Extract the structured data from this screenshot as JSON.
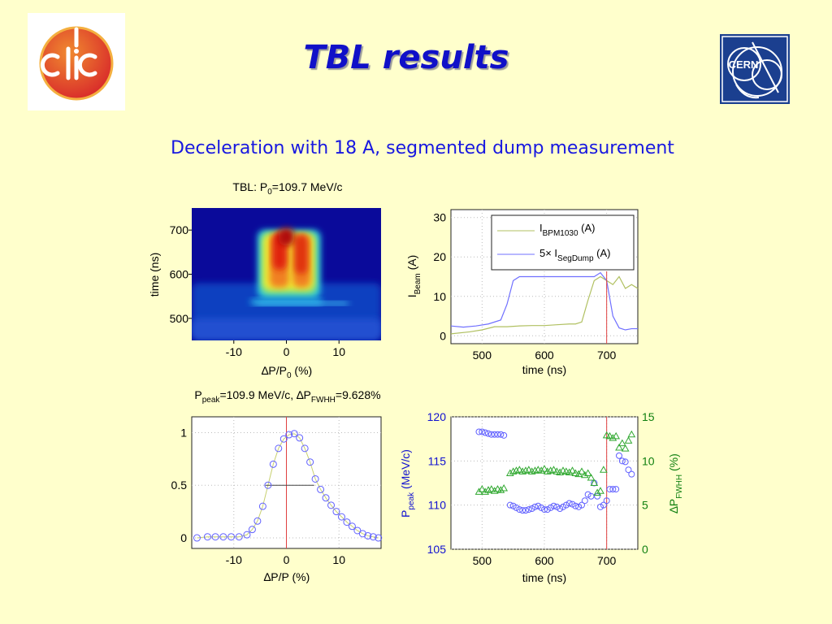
{
  "slide": {
    "title": "TBL results",
    "subtitle": "Deceleration with 18 A, segmented dump measurement",
    "logos": {
      "left": "CLIC",
      "right": "CERN"
    }
  },
  "colors": {
    "background": "#ffffcc",
    "title": "#1010c8",
    "subtitle": "#1818e0",
    "series_blue": "#6060ff",
    "series_green": "#30a830",
    "marker_line": "#e04040",
    "ppeak_axis": "#1010d0",
    "dp_axis": "#108010"
  },
  "chart_data": [
    {
      "type": "heatmap",
      "title_parts": [
        "TBL: P",
        "0",
        "=109.7 MeV/c"
      ],
      "xlabel_parts": [
        "∆P/P",
        "0",
        " (%)"
      ],
      "ylabel": "time (ns)",
      "xlim": [
        -18,
        18
      ],
      "ylim": [
        450,
        750
      ],
      "xticks": [
        -10,
        0,
        10
      ],
      "yticks": [
        500,
        600,
        700
      ],
      "colormap": "jet",
      "note": "Beam signal vs relative momentum; high intensity around ∆P/P0 between -5 and +5 % for time 520-700 ns"
    },
    {
      "type": "line",
      "xlabel": "time (ns)",
      "ylabel": "I",
      "ylabel_sub": "Beam",
      "ylabel_suffix": " (A)",
      "xlim": [
        450,
        750
      ],
      "ylim": [
        -2,
        32
      ],
      "xticks": [
        500,
        600,
        700
      ],
      "yticks": [
        0,
        10,
        20,
        30
      ],
      "grid": true,
      "legend_position": "top-right",
      "vline_x": 700,
      "series": [
        {
          "legend_parts": [
            "I",
            "BPM1030",
            " (A)"
          ],
          "color": "green",
          "x": [
            450,
            480,
            500,
            520,
            540,
            560,
            580,
            600,
            620,
            640,
            650,
            660,
            670,
            680,
            690,
            700,
            710,
            720,
            730,
            740,
            750
          ],
          "y": [
            0.5,
            1,
            1.5,
            2.3,
            2.3,
            2.5,
            2.6,
            2.6,
            2.8,
            3,
            3,
            3.5,
            9,
            14,
            15,
            14,
            13,
            15,
            12,
            13,
            12
          ]
        },
        {
          "legend_parts": [
            "5× I",
            "SegDump",
            " (A)"
          ],
          "color": "blue",
          "x": [
            450,
            470,
            490,
            510,
            530,
            540,
            550,
            560,
            580,
            600,
            620,
            640,
            660,
            680,
            690,
            700,
            710,
            720,
            730,
            740,
            750
          ],
          "y": [
            2.5,
            2.2,
            2.5,
            3,
            4,
            8,
            14,
            15,
            15,
            15,
            15,
            15,
            15,
            15,
            16,
            14,
            5,
            2,
            1.5,
            1.8,
            1.8
          ]
        }
      ]
    },
    {
      "type": "scatter",
      "title_parts": [
        "P",
        "peak",
        "=109.9 MeV/c, ∆P",
        "FWHH",
        "=9.628%"
      ],
      "xlabel": "∆P/P (%)",
      "xlim": [
        -18,
        18
      ],
      "ylim": [
        -0.1,
        1.15
      ],
      "xticks": [
        -10,
        0,
        10
      ],
      "yticks": [
        0,
        0.5,
        1
      ],
      "ytick_labels": [
        "0",
        "0.5",
        "1"
      ],
      "grid": true,
      "vline_x": 0,
      "fwhm_line": {
        "x1": -4,
        "x2": 5.3,
        "y": 0.5
      },
      "series": [
        {
          "marker": "circle",
          "color": "blue",
          "x": [
            -17,
            -15,
            -13.5,
            -12,
            -10.5,
            -9,
            -7.5,
            -6.5,
            -5.5,
            -4.5,
            -3.5,
            -2.5,
            -1.5,
            -0.5,
            0.5,
            1.5,
            2.5,
            3.5,
            4.5,
            5.5,
            6.5,
            7.5,
            8.5,
            9.5,
            10.5,
            11.5,
            12.5,
            13.5,
            14.5,
            15.5,
            16.5,
            17.5
          ],
          "y": [
            0.0,
            0.01,
            0.01,
            0.01,
            0.01,
            0.01,
            0.03,
            0.08,
            0.16,
            0.3,
            0.5,
            0.7,
            0.85,
            0.94,
            0.98,
            0.99,
            0.95,
            0.85,
            0.72,
            0.56,
            0.46,
            0.38,
            0.31,
            0.25,
            0.2,
            0.15,
            0.11,
            0.07,
            0.04,
            0.02,
            0.01,
            0.0
          ]
        }
      ]
    },
    {
      "type": "scatter",
      "xlabel": "time (ns)",
      "ylabel_left_parts": [
        "P",
        "peak",
        " (MeV/c)"
      ],
      "ylabel_right_parts": [
        "∆P",
        "FWHH",
        " (%)"
      ],
      "xlim": [
        450,
        750
      ],
      "ylim_left": [
        105,
        120
      ],
      "ylim_right": [
        0,
        15
      ],
      "xticks": [
        500,
        600,
        700
      ],
      "yticks_left": [
        105,
        110,
        115,
        120
      ],
      "yticks_right": [
        0,
        5,
        10,
        15
      ],
      "grid": true,
      "vline_x": 700,
      "series": [
        {
          "name": "P_peak",
          "axis": "left",
          "marker": "circle",
          "color": "blue",
          "x": [
            495,
            500,
            505,
            510,
            515,
            520,
            525,
            530,
            535,
            545,
            550,
            555,
            560,
            565,
            570,
            575,
            580,
            585,
            590,
            595,
            600,
            605,
            610,
            615,
            620,
            625,
            630,
            635,
            640,
            645,
            650,
            655,
            660,
            665,
            670,
            675,
            680,
            685,
            690,
            695,
            700,
            705,
            710,
            715,
            720,
            725,
            730,
            735,
            740
          ],
          "y": [
            118.3,
            118.3,
            118.2,
            118.1,
            118.0,
            118.0,
            118.0,
            118.0,
            117.9,
            110.0,
            109.9,
            109.7,
            109.5,
            109.4,
            109.4,
            109.5,
            109.6,
            109.8,
            109.9,
            109.7,
            109.5,
            109.5,
            109.7,
            109.9,
            109.8,
            109.6,
            109.8,
            110.0,
            110.2,
            110.1,
            109.9,
            109.8,
            110.0,
            110.5,
            111.2,
            111.0,
            112.5,
            111.0,
            109.8,
            110.0,
            110.5,
            111.8,
            111.8,
            111.8,
            115.6,
            115.0,
            114.9,
            114.0,
            113.5
          ]
        },
        {
          "name": "∆P_FWHH",
          "axis": "right",
          "marker": "triangle",
          "color": "green",
          "x": [
            495,
            500,
            505,
            510,
            515,
            520,
            525,
            530,
            535,
            545,
            550,
            555,
            560,
            565,
            570,
            575,
            580,
            585,
            590,
            595,
            600,
            605,
            610,
            615,
            620,
            625,
            630,
            635,
            640,
            645,
            650,
            655,
            660,
            665,
            670,
            675,
            680,
            685,
            690,
            695,
            700,
            705,
            710,
            715,
            720,
            725,
            730,
            735,
            740
          ],
          "y": [
            6.5,
            6.8,
            6.5,
            6.7,
            6.8,
            6.6,
            6.8,
            6.7,
            6.9,
            8.6,
            8.8,
            8.9,
            9.0,
            8.8,
            8.9,
            9.0,
            8.8,
            8.9,
            9.0,
            8.9,
            9.1,
            8.8,
            8.9,
            9.0,
            8.8,
            8.7,
            8.9,
            8.8,
            8.7,
            8.9,
            8.6,
            8.5,
            8.8,
            8.4,
            8.6,
            8.1,
            7.5,
            6.4,
            6.6,
            9.0,
            12.9,
            12.8,
            12.6,
            12.8,
            11.5,
            12.0,
            11.4,
            12.3,
            13.0
          ]
        }
      ]
    }
  ]
}
